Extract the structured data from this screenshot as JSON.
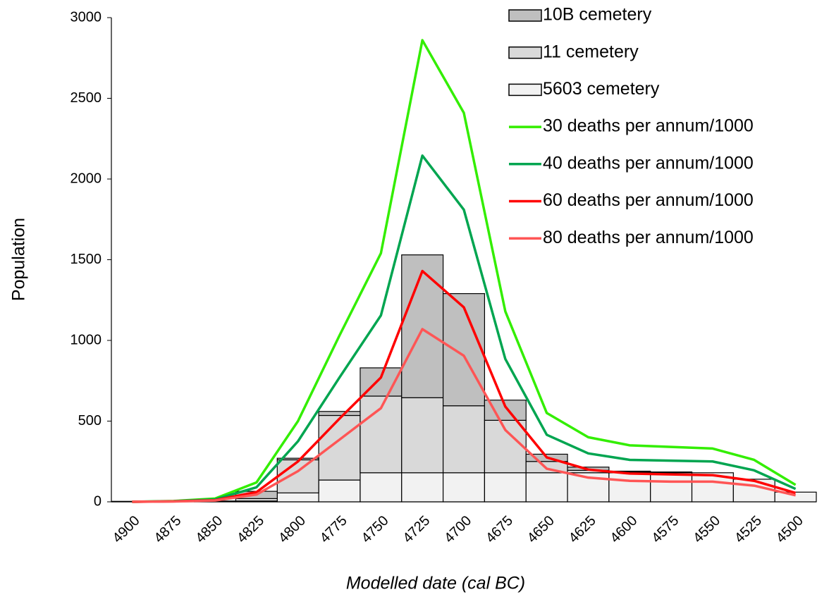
{
  "chart_data": {
    "type": "bar",
    "stacked": true,
    "x_label": "Modelled date (cal BC)",
    "y_label": "Population",
    "categories": [
      "4900",
      "4875",
      "4850",
      "4825",
      "4800",
      "4775",
      "4750",
      "4725",
      "4700",
      "4675",
      "4650",
      "4625",
      "4600",
      "4575",
      "4550",
      "4525",
      "4500"
    ],
    "ylim": [
      0,
      3000
    ],
    "yticks": [
      0,
      500,
      1000,
      1500,
      2000,
      2500,
      3000
    ],
    "grid": false,
    "legend": "top-right",
    "series": [
      {
        "name": "10B cemetery",
        "type": "bar",
        "color": "#bfbfbf",
        "values": [
          0,
          0,
          5,
          45,
          10,
          25,
          175,
          885,
          695,
          125,
          45,
          20,
          5,
          2,
          0,
          0,
          0
        ]
      },
      {
        "name": "11 cemetery",
        "type": "bar",
        "color": "#d9d9d9",
        "values": [
          0,
          0,
          0,
          15,
          205,
          400,
          475,
          465,
          415,
          325,
          70,
          15,
          5,
          3,
          0,
          0,
          0
        ]
      },
      {
        "name": "5603 cemetery",
        "type": "bar",
        "color": "#f2f2f2",
        "values": [
          3,
          0,
          0,
          5,
          55,
          135,
          180,
          180,
          180,
          180,
          180,
          180,
          180,
          180,
          180,
          140,
          60
        ]
      },
      {
        "name": "30 deaths per annum/1000",
        "type": "line",
        "color": "#33ee00",
        "values": [
          0,
          5,
          20,
          120,
          500,
          1030,
          1540,
          2860,
          2410,
          1180,
          550,
          400,
          350,
          340,
          330,
          260,
          105
        ]
      },
      {
        "name": "40 deaths per annum/1000",
        "type": "line",
        "color": "#00a550",
        "values": [
          0,
          4,
          15,
          90,
          375,
          770,
          1155,
          2145,
          1810,
          885,
          415,
          300,
          260,
          255,
          250,
          195,
          80
        ]
      },
      {
        "name": "60 deaths per annum/1000",
        "type": "line",
        "color": "#ff0000",
        "values": [
          0,
          3,
          10,
          60,
          250,
          515,
          770,
          1430,
          1205,
          590,
          275,
          200,
          175,
          170,
          165,
          130,
          55
        ]
      },
      {
        "name": "80 deaths per annum/1000",
        "type": "line",
        "color": "#ff5555",
        "values": [
          0,
          2,
          8,
          45,
          190,
          385,
          580,
          1070,
          905,
          445,
          205,
          150,
          130,
          125,
          125,
          100,
          40
        ]
      }
    ]
  }
}
